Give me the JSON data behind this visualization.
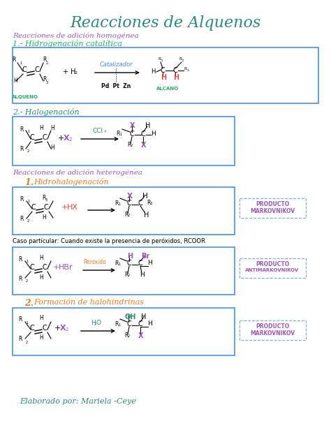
{
  "title": "Reacciones de Alquenos",
  "title_color": "#2d8a7a",
  "title_size": 16,
  "bg_color": "#ffffff",
  "section1_header": "Reacciones de adición homogénea",
  "section1_color": "#9b59b6",
  "subsection1": "1.- Hidrogenación catalítica",
  "subsection1_color": "#27ae60",
  "subsection2": "2.- Halogenación",
  "subsection2_color": "#2d8a7a",
  "section2_header": "Reacciones de adición heterogénea",
  "section2_color": "#9b59b6",
  "subsection3_num": "1.",
  "subsection3_text": "  Hidrohalogenación",
  "subsection3_color": "#e67e22",
  "subsection4_num": "2.",
  "subsection4_text": "  Formación de halohindrinas",
  "subsection4_color": "#e67e22",
  "footer": "Elaborado por: Mariela -Ceye",
  "footer_color": "#2d8a7a",
  "case_text": "Caso particular: Cuando existe la presencia de peróxidos, RCOOR",
  "markovnikov": "MARKOVNIKOV",
  "producto": "PRODUCTO",
  "antimarkovnikov": "ANTIMARKOVNIKOV",
  "alqueno": "ALQUENO",
  "alcano": "ALCANO",
  "box_color": "#4a90d9",
  "purple": "#9b59b6",
  "red": "#e74c3c",
  "orange": "#e67e22",
  "green": "#27ae60",
  "teal": "#2d8a7a"
}
